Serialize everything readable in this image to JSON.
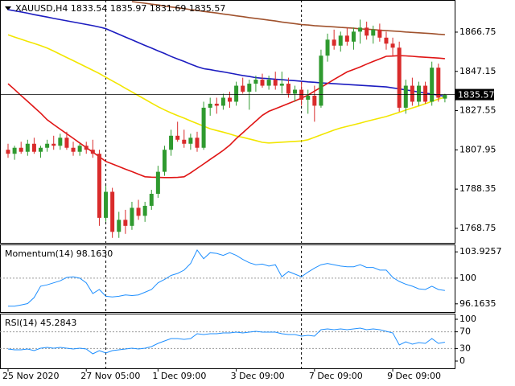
{
  "chart_data": [
    {
      "type": "candlestick",
      "title": "XAUUSD,H4  1833.54 1835.97 1831.69 1835.57",
      "categories": [
        "25 Nov 2020",
        null,
        null,
        null,
        null,
        null,
        null,
        null,
        null,
        null,
        null,
        null,
        "27 Nov 05:00",
        null,
        null,
        null,
        null,
        null,
        null,
        null,
        null,
        null,
        null,
        "1 Dec 09:00",
        null,
        null,
        null,
        null,
        null,
        null,
        null,
        null,
        null,
        null,
        null,
        "3 Dec 09:00",
        null,
        null,
        null,
        null,
        null,
        null,
        null,
        null,
        null,
        null,
        null,
        "7 Dec 09:00",
        null,
        null,
        null,
        null,
        null,
        null,
        null,
        null,
        null,
        null,
        null,
        "9 Dec 09:00",
        null,
        null,
        null,
        null,
        null,
        null,
        null,
        null
      ],
      "open": [
        1808,
        1806,
        1809,
        1807,
        1811,
        1807,
        1809,
        1811,
        1810,
        1814,
        1809,
        1807,
        1810,
        1808,
        1806,
        1774,
        1787,
        1767,
        1773,
        1770,
        1779,
        1775,
        1780,
        1786,
        1797,
        1808,
        1815,
        1813,
        1811,
        1814,
        1809,
        1829,
        1831,
        1830,
        1834,
        1832,
        1840,
        1837,
        1841,
        1843,
        1840,
        1843,
        1840,
        1841,
        1836,
        1838,
        1833,
        1835,
        1830,
        1855,
        1863,
        1860,
        1865,
        1862,
        1867,
        1869,
        1865,
        1868,
        1864,
        1861,
        1859,
        1829,
        1840,
        1832,
        1840,
        1832,
        1849,
        1833.54
      ],
      "high": [
        1811,
        1810,
        1812,
        1813,
        1814,
        1810,
        1813,
        1815,
        1816,
        1817,
        1812,
        1811,
        1812,
        1813,
        1808,
        1790,
        1789,
        1777,
        1778,
        1782,
        1783,
        1782,
        1788,
        1800,
        1810,
        1818,
        1822,
        1818,
        1816,
        1817,
        1832,
        1834,
        1834,
        1836,
        1837,
        1842,
        1844,
        1843,
        1845,
        1846,
        1845,
        1847,
        1847,
        1844,
        1840,
        1842,
        1838,
        1840,
        1858,
        1866,
        1868,
        1867,
        1869,
        1869,
        1873,
        1872,
        1870,
        1871,
        1867,
        1864,
        1862,
        1843,
        1844,
        1842,
        1842,
        1852,
        1851,
        1835.97
      ],
      "low": [
        1804,
        1803,
        1806,
        1805,
        1806,
        1804,
        1807,
        1808,
        1808,
        1808,
        1805,
        1805,
        1806,
        1804,
        1770,
        1772,
        1764,
        1764,
        1766,
        1768,
        1773,
        1772,
        1778,
        1784,
        1795,
        1805,
        1812,
        1809,
        1808,
        1807,
        1808,
        1825,
        1826,
        1828,
        1829,
        1830,
        1836,
        1828,
        1837,
        1839,
        1838,
        1838,
        1836,
        1834,
        1832,
        1830,
        1826,
        1822,
        1829,
        1852,
        1858,
        1857,
        1860,
        1858,
        1861,
        1863,
        1861,
        1862,
        1858,
        1855,
        1827,
        1826,
        1830,
        1830,
        1831,
        1830,
        1832,
        1831.69
      ],
      "close": [
        1806,
        1809,
        1807,
        1811,
        1807,
        1809,
        1811,
        1810,
        1814,
        1809,
        1807,
        1810,
        1808,
        1806,
        1774,
        1787,
        1767,
        1773,
        1770,
        1779,
        1775,
        1780,
        1786,
        1797,
        1808,
        1815,
        1813,
        1811,
        1814,
        1809,
        1829,
        1831,
        1830,
        1834,
        1832,
        1840,
        1837,
        1841,
        1843,
        1840,
        1843,
        1840,
        1841,
        1836,
        1838,
        1833,
        1835,
        1830,
        1855,
        1863,
        1860,
        1865,
        1862,
        1867,
        1869,
        1865,
        1868,
        1864,
        1861,
        1859,
        1829,
        1840,
        1832,
        1840,
        1832,
        1849,
        1834,
        1835.57
      ],
      "up_color": "#2f9a2f",
      "down_color": "#d92b2b",
      "series": [
        {
          "color": "#a0522d",
          "values": [
            null,
            null,
            null,
            null,
            null,
            null,
            null,
            null,
            null,
            null,
            null,
            null,
            null,
            null,
            null,
            null,
            null,
            null,
            null,
            1882.0,
            1881.6,
            1881.2,
            1880.7,
            1880.3,
            1879.8,
            1879.3,
            1878.9,
            1878.5,
            1878.0,
            1877.6,
            1877.1,
            1876.7,
            1876.3,
            1875.8,
            1875.4,
            1874.9,
            1874.5,
            1874.0,
            1873.6,
            1873.2,
            1872.7,
            1872.3,
            1871.8,
            1871.4,
            1871.0,
            1870.5,
            1870.3,
            1870.0,
            1869.8,
            1869.6,
            1869.4,
            1869.1,
            1868.9,
            1868.7,
            1868.4,
            1868.2,
            1868.0,
            1867.7,
            1867.5,
            1867.3,
            1867.1,
            1866.8,
            1866.6,
            1866.4,
            1866.2,
            1866.0,
            1865.7,
            1865.5
          ]
        },
        {
          "color": "#1c1cc0",
          "values": [
            1878.0,
            1877.4,
            1876.8,
            1876.2,
            1875.5,
            1874.9,
            1874.3,
            1873.6,
            1873.0,
            1872.4,
            1871.8,
            1871.2,
            1870.6,
            1870.0,
            1869.3,
            1868.5,
            1867.1,
            1865.7,
            1864.3,
            1862.9,
            1861.5,
            1860.1,
            1858.8,
            1857.4,
            1856.1,
            1854.6,
            1853.3,
            1852.1,
            1850.8,
            1849.5,
            1848.5,
            1848.0,
            1847.4,
            1846.9,
            1846.3,
            1845.7,
            1845.1,
            1844.6,
            1844.0,
            1843.7,
            1843.5,
            1843.2,
            1843.0,
            1842.7,
            1842.5,
            1842.2,
            1841.9,
            1841.7,
            1841.4,
            1841.2,
            1841.0,
            1840.8,
            1840.6,
            1840.4,
            1840.2,
            1840.0,
            1839.8,
            1839.6,
            1839.4,
            1838.9,
            1838.4,
            1837.9,
            1837.4,
            1836.8,
            1836.3,
            1835.8,
            1835.3,
            1834.7
          ]
        },
        {
          "color": "#f2e600",
          "values": [
            1865.4,
            1864.3,
            1863.2,
            1862.1,
            1861.1,
            1860.0,
            1858.8,
            1857.3,
            1855.7,
            1854.1,
            1852.5,
            1850.9,
            1849.3,
            1847.7,
            1846.1,
            1844.2,
            1842.4,
            1840.6,
            1838.7,
            1836.9,
            1835.0,
            1833.2,
            1831.3,
            1829.5,
            1827.9,
            1826.4,
            1825.1,
            1823.8,
            1822.4,
            1821.1,
            1819.8,
            1818.5,
            1817.6,
            1816.8,
            1815.9,
            1814.9,
            1814.2,
            1813.4,
            1812.6,
            1811.7,
            1811.4,
            1811.6,
            1811.8,
            1812.0,
            1812.2,
            1812.4,
            1813.0,
            1814.2,
            1815.4,
            1816.6,
            1817.8,
            1818.9,
            1819.7,
            1820.5,
            1821.3,
            1822.2,
            1823.0,
            1823.8,
            1824.6,
            1825.7,
            1826.7,
            1827.8,
            1828.9,
            1829.9,
            1831.0,
            1832.2,
            1833.3,
            1834.3
          ]
        },
        {
          "color": "#e01515",
          "values": [
            1841.0,
            1838.1,
            1835.1,
            1832.2,
            1829.2,
            1826.3,
            1823.0,
            1820.6,
            1818.3,
            1816.0,
            1813.7,
            1811.4,
            1809.1,
            1806.8,
            1804.5,
            1802.2,
            1800.9,
            1799.6,
            1798.3,
            1797.1,
            1795.8,
            1794.5,
            1794.3,
            1794.2,
            1794.1,
            1794.1,
            1794.2,
            1794.5,
            1796.5,
            1798.7,
            1800.9,
            1803.2,
            1805.4,
            1807.7,
            1810.3,
            1813.6,
            1816.5,
            1819.4,
            1822.3,
            1825.2,
            1827.2,
            1828.5,
            1829.8,
            1831.1,
            1832.4,
            1833.8,
            1835.3,
            1837.3,
            1839.2,
            1841.1,
            1843.1,
            1845.0,
            1846.9,
            1848.1,
            1849.4,
            1850.8,
            1852.1,
            1853.4,
            1854.7,
            1854.8,
            1855.0,
            1854.9,
            1854.7,
            1854.4,
            1854.2,
            1854.0,
            1853.8,
            1853.5
          ]
        }
      ],
      "current_price": 1835.57,
      "ylim": [
        1761.5,
        1882.8
      ],
      "yticks": [
        1866.75,
        1847.15,
        1827.55,
        1807.95,
        1788.35,
        1768.75
      ]
    },
    {
      "type": "line",
      "title": "Momentum(14) 98.1630",
      "color": "#1e8fff",
      "values": [
        95.8,
        95.8,
        96.0,
        96.2,
        97.1,
        98.8,
        99.0,
        99.3,
        99.6,
        100.1,
        100.2,
        100.0,
        99.3,
        97.7,
        98.3,
        97.3,
        97.2,
        97.3,
        97.5,
        97.4,
        97.5,
        97.9,
        98.3,
        99.3,
        99.8,
        100.4,
        100.7,
        101.2,
        102.2,
        104.2,
        102.9,
        103.8,
        103.7,
        103.4,
        103.8,
        103.4,
        102.8,
        102.3,
        102.0,
        102.1,
        101.8,
        102.0,
        100.2,
        101.0,
        100.6,
        100.2,
        100.9,
        101.5,
        102.0,
        102.2,
        102.0,
        101.8,
        101.7,
        101.7,
        102.0,
        101.6,
        101.6,
        101.2,
        101.2,
        100.1,
        99.5,
        99.1,
        98.8,
        98.4,
        98.3,
        98.8,
        98.3,
        98.163
      ],
      "levels": [
        100
      ],
      "ylim": [
        94.94,
        105.03
      ],
      "yticks": [
        103.9257,
        100,
        96.1635
      ]
    },
    {
      "type": "line",
      "title": "RSI(14) 45.2843",
      "color": "#1e8fff",
      "values": [
        28.8,
        26.9,
        26.9,
        28.8,
        25.0,
        30.8,
        32.7,
        30.8,
        32.7,
        30.8,
        28.8,
        30.8,
        28.8,
        17.3,
        25.0,
        19.2,
        25.0,
        26.9,
        28.8,
        30.8,
        28.8,
        30.8,
        34.6,
        42.3,
        48.1,
        53.8,
        53.8,
        51.9,
        53.8,
        65.4,
        63.5,
        65.4,
        65.4,
        67.3,
        67.3,
        69.2,
        67.3,
        69.2,
        71.2,
        69.2,
        69.2,
        69.2,
        65.4,
        63.5,
        63.5,
        59.6,
        61.5,
        59.6,
        75.0,
        76.9,
        75.0,
        76.9,
        75.0,
        76.9,
        78.8,
        75.0,
        76.9,
        75.0,
        71.2,
        67.3,
        38.5,
        46.2,
        40.4,
        44.2,
        42.3,
        53.8,
        42.3,
        45.2843
      ],
      "levels": [
        70,
        30
      ],
      "ylim": [
        -17.3,
        113.5
      ],
      "yticks": [
        100,
        70,
        30,
        0
      ]
    }
  ]
}
